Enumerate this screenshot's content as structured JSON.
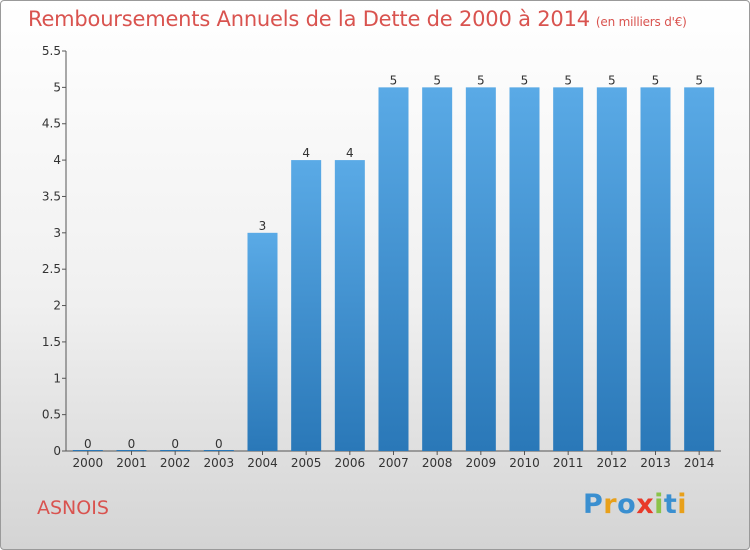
{
  "header": {
    "title": "Remboursements Annuels de la Dette de 2000 à 2014",
    "unit": "(en milliers d'€)"
  },
  "footer": {
    "commune": "ASNOIS",
    "logo": "Proxiti"
  },
  "colors": {
    "title": "#d9534f",
    "bar_top": "#5aaae6",
    "bar_bottom": "#2a78b8",
    "logo_letters": [
      "#3a8fd0",
      "#e8a01a",
      "#3a8fd0",
      "#e83a2a",
      "#8bc34a",
      "#3a8fd0",
      "#e8a01a"
    ]
  },
  "chart_data": {
    "type": "bar",
    "categories": [
      "2000",
      "2001",
      "2002",
      "2003",
      "2004",
      "2005",
      "2006",
      "2007",
      "2008",
      "2009",
      "2010",
      "2011",
      "2012",
      "2013",
      "2014"
    ],
    "values": [
      0,
      0,
      0,
      0,
      3,
      4,
      4,
      5,
      5,
      5,
      5,
      5,
      5,
      5,
      5
    ],
    "data_labels": [
      "0",
      "0",
      "0",
      "0",
      "3",
      "4",
      "4",
      "5",
      "5",
      "5",
      "5",
      "5",
      "5",
      "5",
      "5"
    ],
    "ylim": [
      0,
      5.5
    ],
    "yticks": [
      0,
      0.5,
      1,
      1.5,
      2,
      2.5,
      3,
      3.5,
      4,
      4.5,
      5,
      5.5
    ],
    "ytick_labels": [
      "0",
      "0.5",
      "1",
      "1.5",
      "2",
      "2.5",
      "3",
      "3.5",
      "4",
      "4.5",
      "5",
      "5.5"
    ],
    "title": "Remboursements Annuels de la Dette de 2000 à 2014",
    "xlabel": "",
    "ylabel": "",
    "grid": false
  }
}
